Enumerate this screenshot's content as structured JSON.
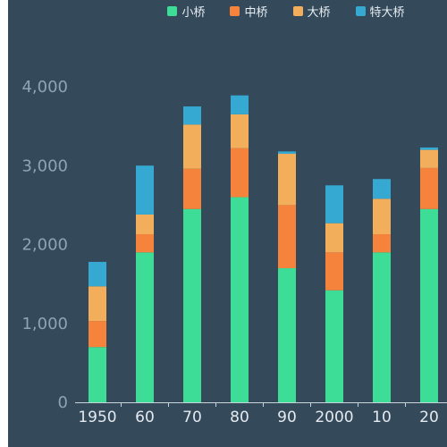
{
  "chart_data": {
    "type": "bar",
    "stacked": true,
    "categories": [
      "1950",
      "60",
      "70",
      "80",
      "90",
      "2000",
      "10",
      "20"
    ],
    "series": [
      {
        "name": "小桥",
        "color": "#3ddc97",
        "values": [
          700,
          1900,
          2450,
          2600,
          1700,
          1420,
          1900,
          2450
        ]
      },
      {
        "name": "中桥",
        "color": "#f5833c",
        "values": [
          330,
          230,
          510,
          620,
          800,
          480,
          230,
          520
        ]
      },
      {
        "name": "大桥",
        "color": "#f2ae5a",
        "values": [
          440,
          250,
          560,
          430,
          650,
          370,
          450,
          230
        ]
      },
      {
        "name": "特大桥",
        "color": "#36a9d3",
        "values": [
          310,
          620,
          230,
          240,
          30,
          480,
          250,
          30
        ]
      }
    ],
    "y_ticks": [
      "0",
      "1,000",
      "2,000",
      "3,000",
      "4,000"
    ],
    "ylim": [
      0,
      5000
    ],
    "legend_position": "top",
    "grid": false
  }
}
